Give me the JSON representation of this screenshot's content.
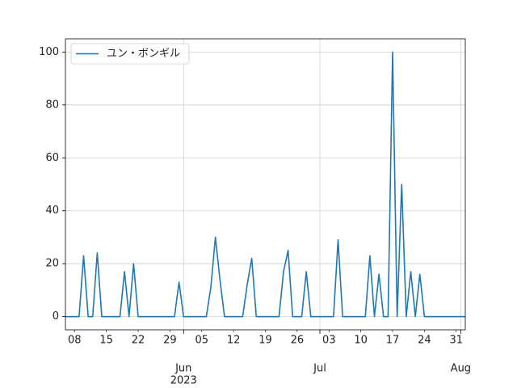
{
  "chart_data": {
    "type": "line",
    "x": [
      "2023-05-06",
      "2023-05-07",
      "2023-05-08",
      "2023-05-09",
      "2023-05-10",
      "2023-05-11",
      "2023-05-12",
      "2023-05-13",
      "2023-05-14",
      "2023-05-15",
      "2023-05-16",
      "2023-05-17",
      "2023-05-18",
      "2023-05-19",
      "2023-05-20",
      "2023-05-21",
      "2023-05-22",
      "2023-05-23",
      "2023-05-24",
      "2023-05-25",
      "2023-05-26",
      "2023-05-27",
      "2023-05-28",
      "2023-05-29",
      "2023-05-30",
      "2023-05-31",
      "2023-06-01",
      "2023-06-02",
      "2023-06-03",
      "2023-06-04",
      "2023-06-05",
      "2023-06-06",
      "2023-06-07",
      "2023-06-08",
      "2023-06-09",
      "2023-06-10",
      "2023-06-11",
      "2023-06-12",
      "2023-06-13",
      "2023-06-14",
      "2023-06-15",
      "2023-06-16",
      "2023-06-17",
      "2023-06-18",
      "2023-06-19",
      "2023-06-20",
      "2023-06-21",
      "2023-06-22",
      "2023-06-23",
      "2023-06-24",
      "2023-06-25",
      "2023-06-26",
      "2023-06-27",
      "2023-06-28",
      "2023-06-29",
      "2023-06-30",
      "2023-07-01",
      "2023-07-02",
      "2023-07-03",
      "2023-07-04",
      "2023-07-05",
      "2023-07-06",
      "2023-07-07",
      "2023-07-08",
      "2023-07-09",
      "2023-07-10",
      "2023-07-11",
      "2023-07-12",
      "2023-07-13",
      "2023-07-14",
      "2023-07-15",
      "2023-07-16",
      "2023-07-17",
      "2023-07-18",
      "2023-07-19",
      "2023-07-20",
      "2023-07-21",
      "2023-07-22",
      "2023-07-23",
      "2023-07-24",
      "2023-07-25",
      "2023-07-26",
      "2023-07-27",
      "2023-07-28",
      "2023-07-29",
      "2023-07-30",
      "2023-07-31",
      "2023-08-01",
      "2023-08-02"
    ],
    "series": [
      {
        "name": "ユン・ボンギル",
        "color": "#1f77b4",
        "values": [
          0,
          0,
          0,
          0,
          23,
          0,
          0,
          24,
          0,
          0,
          0,
          0,
          0,
          17,
          0,
          20,
          0,
          0,
          0,
          0,
          0,
          0,
          0,
          0,
          0,
          13,
          0,
          0,
          0,
          0,
          0,
          0,
          11,
          30,
          14,
          0,
          0,
          0,
          0,
          0,
          12,
          22,
          0,
          0,
          0,
          0,
          0,
          0,
          17,
          25,
          0,
          0,
          0,
          17,
          0,
          0,
          0,
          0,
          0,
          0,
          29,
          0,
          0,
          0,
          0,
          0,
          0,
          23,
          0,
          16,
          0,
          0,
          100,
          0,
          50,
          0,
          17,
          0,
          16,
          0,
          0,
          0,
          0,
          0,
          0,
          0,
          0,
          0,
          0
        ]
      }
    ],
    "xlim": [
      "2023-05-06",
      "2023-08-02"
    ],
    "xticks": [
      {
        "value": "2023-05-08",
        "label": "08"
      },
      {
        "value": "2023-05-15",
        "label": "15"
      },
      {
        "value": "2023-05-22",
        "label": "22"
      },
      {
        "value": "2023-05-29",
        "label": "29"
      },
      {
        "value": "2023-06-05",
        "label": "05"
      },
      {
        "value": "2023-06-12",
        "label": "12"
      },
      {
        "value": "2023-06-19",
        "label": "19"
      },
      {
        "value": "2023-06-26",
        "label": "26"
      },
      {
        "value": "2023-07-03",
        "label": "03"
      },
      {
        "value": "2023-07-10",
        "label": "10"
      },
      {
        "value": "2023-07-17",
        "label": "17"
      },
      {
        "value": "2023-07-24",
        "label": "24"
      },
      {
        "value": "2023-07-31",
        "label": "31"
      }
    ],
    "major_xticks": [
      {
        "value": "2023-06-01",
        "label": "Jun"
      },
      {
        "value": "2023-07-01",
        "label": "Jul"
      },
      {
        "value": "2023-08-01",
        "label": "Aug"
      }
    ],
    "year_label": "2023",
    "ylim": [
      -5,
      105
    ],
    "yticks": [
      0,
      20,
      40,
      60,
      80,
      100
    ],
    "grid": true,
    "legend": "upper left"
  }
}
